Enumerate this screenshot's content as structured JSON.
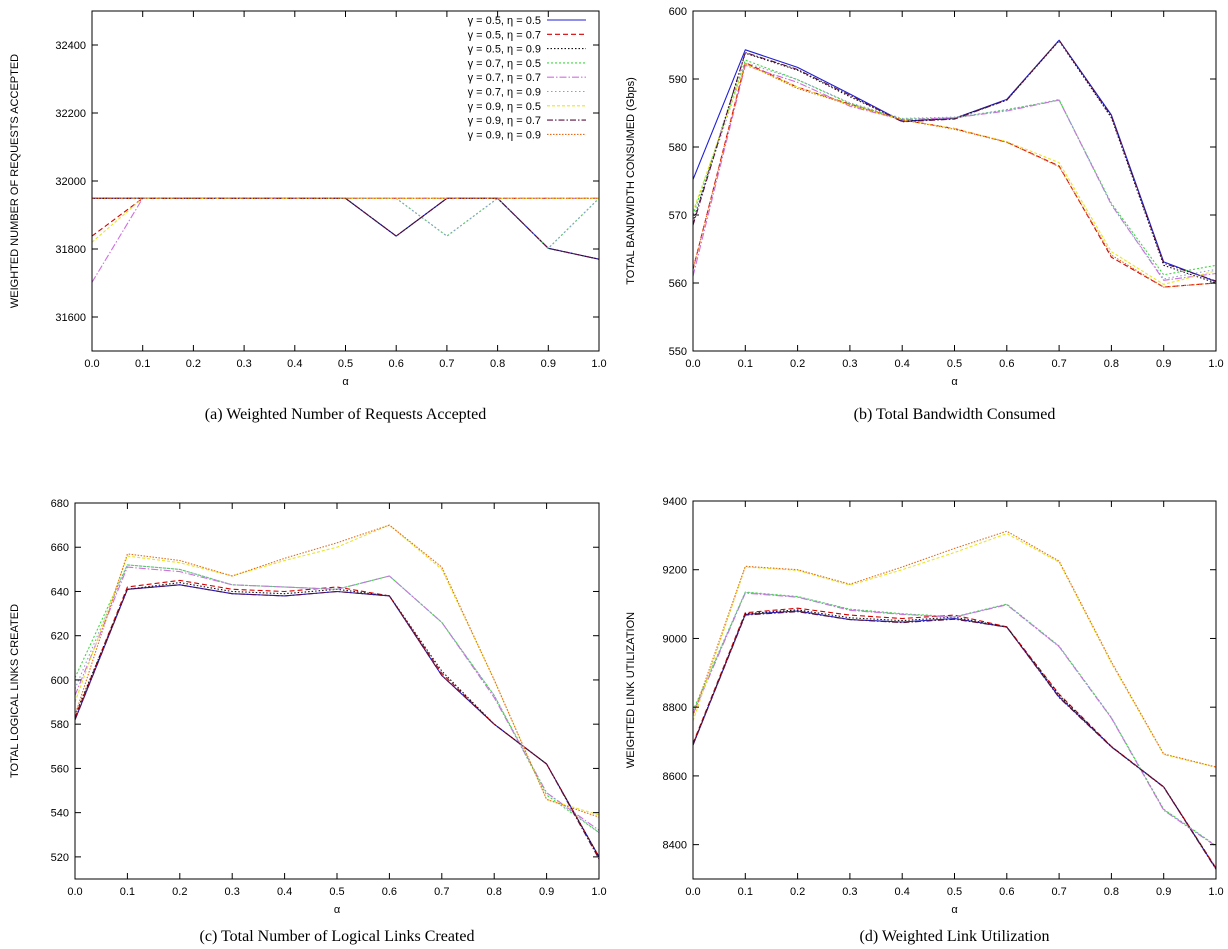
{
  "chart_data": [
    {
      "type": "line",
      "caption": "(a) Weighted Number of Requests Accepted",
      "xlabel": "α",
      "ylabel": "WEIGHTED NUMBER OF REQUESTS ACCEPTED",
      "xlim": [
        0,
        1
      ],
      "ylim": [
        31500,
        32500
      ],
      "xticks": [
        0,
        0.1,
        0.2,
        0.3,
        0.4,
        0.5,
        0.6,
        0.7,
        0.8,
        0.9,
        1.0
      ],
      "xtick_labels": [
        "0.0",
        "0.1",
        "0.2",
        "0.3",
        "0.4",
        "0.5",
        "0.6",
        "0.7",
        "0.8",
        "0.9",
        "1.0"
      ],
      "yticks": [
        31600,
        31800,
        32000,
        32200,
        32400
      ],
      "ytick_labels": [
        "31600",
        "31800",
        "32000",
        "32200",
        "32400"
      ],
      "legend": "top-right",
      "x": [
        0,
        0.1,
        0.2,
        0.3,
        0.4,
        0.5,
        0.6,
        0.7,
        0.8,
        0.9,
        1.0
      ],
      "series": [
        {
          "name": "γ = 0.5, η = 0.5",
          "values": [
            31949,
            31949,
            31949,
            31949,
            31949,
            31949,
            31838,
            31949,
            31949,
            31802,
            31770
          ]
        },
        {
          "name": "γ = 0.5, η = 0.7",
          "values": [
            31838,
            31949,
            31949,
            31949,
            31949,
            31949,
            31949,
            31949,
            31949,
            31949,
            31949
          ]
        },
        {
          "name": "γ = 0.5, η = 0.9",
          "values": [
            31949,
            31949,
            31949,
            31949,
            31949,
            31949,
            31838,
            31949,
            31949,
            31802,
            31770
          ]
        },
        {
          "name": "γ = 0.7, η = 0.5",
          "values": [
            31949,
            31949,
            31949,
            31949,
            31949,
            31949,
            31949,
            31838,
            31949,
            31802,
            31949
          ]
        },
        {
          "name": "γ = 0.7, η = 0.7",
          "values": [
            31702,
            31949,
            31949,
            31949,
            31949,
            31949,
            31949,
            31949,
            31949,
            31949,
            31949
          ]
        },
        {
          "name": "γ = 0.7, η = 0.9",
          "values": [
            31949,
            31949,
            31949,
            31949,
            31949,
            31949,
            31949,
            31838,
            31949,
            31802,
            31949
          ]
        },
        {
          "name": "γ = 0.9, η = 0.5",
          "values": [
            31820,
            31949,
            31949,
            31949,
            31949,
            31949,
            31949,
            31949,
            31949,
            31949,
            31949
          ]
        },
        {
          "name": "γ = 0.9, η = 0.7",
          "values": [
            31949,
            31949,
            31949,
            31949,
            31949,
            31949,
            31838,
            31949,
            31949,
            31802,
            31770
          ]
        },
        {
          "name": "γ = 0.9, η = 0.9",
          "values": [
            31949,
            31949,
            31949,
            31949,
            31949,
            31949,
            31949,
            31949,
            31949,
            31949,
            31949
          ]
        }
      ]
    },
    {
      "type": "line",
      "caption": "(b) Total Bandwidth Consumed",
      "xlabel": "α",
      "ylabel": "TOTAL BANDWIDTH CONSUMED (Gbps)",
      "xlim": [
        0,
        1
      ],
      "ylim": [
        550,
        600
      ],
      "xticks": [
        0,
        0.1,
        0.2,
        0.3,
        0.4,
        0.5,
        0.6,
        0.7,
        0.8,
        0.9,
        1.0
      ],
      "xtick_labels": [
        "0.0",
        "0.1",
        "0.2",
        "0.3",
        "0.4",
        "0.5",
        "0.6",
        "0.7",
        "0.8",
        "0.9",
        "1.0"
      ],
      "yticks": [
        550,
        560,
        570,
        580,
        590,
        600
      ],
      "ytick_labels": [
        "550",
        "560",
        "570",
        "580",
        "590",
        "600"
      ],
      "x": [
        0,
        0.1,
        0.2,
        0.3,
        0.4,
        0.5,
        0.6,
        0.7,
        0.8,
        0.9,
        1.0
      ],
      "series": [
        {
          "name": "γ = 0.5, η = 0.5",
          "values": [
            575.2,
            594.3,
            591.7,
            587.8,
            583.8,
            584.2,
            587.0,
            595.7,
            584.7,
            563.1,
            560.2
          ]
        },
        {
          "name": "γ = 0.5, η = 0.7",
          "values": [
            562.0,
            592.4,
            588.8,
            586.3,
            584.0,
            582.7,
            580.7,
            577.2,
            563.8,
            559.4,
            560.0
          ]
        },
        {
          "name": "γ = 0.5, η = 0.9",
          "values": [
            569.0,
            593.8,
            591.3,
            587.4,
            583.8,
            584.2,
            586.9,
            595.6,
            584.3,
            562.6,
            560.0
          ]
        },
        {
          "name": "γ = 0.7, η = 0.5",
          "values": [
            570.0,
            592.8,
            589.9,
            586.4,
            584.1,
            584.3,
            585.5,
            586.9,
            571.7,
            561.2,
            562.6
          ]
        },
        {
          "name": "γ = 0.7, η = 0.7",
          "values": [
            561.0,
            592.0,
            589.5,
            586.0,
            584.0,
            584.3,
            585.3,
            586.9,
            571.5,
            560.4,
            561.4
          ]
        },
        {
          "name": "γ = 0.7, η = 0.9",
          "values": [
            569.3,
            592.4,
            589.9,
            586.5,
            584.2,
            584.4,
            585.4,
            587.0,
            571.5,
            560.6,
            562.0
          ]
        },
        {
          "name": "γ = 0.9, η = 0.5",
          "values": [
            570.5,
            592.2,
            588.8,
            586.2,
            584.0,
            582.7,
            580.8,
            577.7,
            564.6,
            559.8,
            561.8
          ]
        },
        {
          "name": "γ = 0.9, η = 0.7",
          "values": [
            568.5,
            593.9,
            591.4,
            587.6,
            583.7,
            584.1,
            586.9,
            595.7,
            584.5,
            562.9,
            560.3
          ]
        },
        {
          "name": "γ = 0.9, η = 0.9",
          "values": [
            562.0,
            592.3,
            588.6,
            586.2,
            584.0,
            582.6,
            580.7,
            577.1,
            564.1,
            559.4,
            560.0
          ]
        }
      ]
    },
    {
      "type": "line",
      "caption": "(c) Total Number of Logical Links Created",
      "xlabel": "α",
      "ylabel": "TOTAL LOGICAL LINKS CREATED",
      "xlim": [
        0,
        1
      ],
      "ylim": [
        510,
        680
      ],
      "xticks": [
        0,
        0.1,
        0.2,
        0.3,
        0.4,
        0.5,
        0.6,
        0.7,
        0.8,
        0.9,
        1.0
      ],
      "xtick_labels": [
        "0.0",
        "0.1",
        "0.2",
        "0.3",
        "0.4",
        "0.5",
        "0.6",
        "0.7",
        "0.8",
        "0.9",
        "1.0"
      ],
      "yticks": [
        520,
        540,
        560,
        580,
        600,
        620,
        640,
        660,
        680
      ],
      "ytick_labels": [
        "520",
        "540",
        "560",
        "580",
        "600",
        "620",
        "640",
        "660",
        "680"
      ],
      "x": [
        0,
        0.1,
        0.2,
        0.3,
        0.4,
        0.5,
        0.6,
        0.7,
        0.8,
        0.9,
        1.0
      ],
      "series": [
        {
          "name": "γ = 0.5, η = 0.5",
          "values": [
            582,
            641,
            643,
            639,
            638,
            640,
            638,
            602,
            580,
            562,
            520
          ]
        },
        {
          "name": "γ = 0.5, η = 0.7",
          "values": [
            583,
            642,
            645,
            641,
            640,
            642,
            638,
            603,
            580,
            562,
            520
          ]
        },
        {
          "name": "γ = 0.5, η = 0.9",
          "values": [
            584,
            641,
            644,
            640,
            639,
            641,
            638,
            604,
            580,
            562,
            520
          ]
        },
        {
          "name": "γ = 0.7, η = 0.5",
          "values": [
            601,
            652,
            650,
            643,
            642,
            641,
            647,
            626,
            593,
            548,
            531
          ]
        },
        {
          "name": "γ = 0.7, η = 0.7",
          "values": [
            593,
            651,
            649,
            643,
            642,
            641,
            647,
            626,
            592,
            549,
            532
          ]
        },
        {
          "name": "γ = 0.7, η = 0.9",
          "values": [
            596,
            652,
            650,
            643,
            642,
            641,
            647,
            626,
            593,
            549,
            531
          ]
        },
        {
          "name": "γ = 0.9, η = 0.5",
          "values": [
            590,
            656,
            653,
            647,
            654,
            660,
            670,
            650,
            600,
            546,
            539
          ]
        },
        {
          "name": "γ = 0.9, η = 0.7",
          "values": [
            582,
            641,
            643,
            639,
            638,
            640,
            638,
            602,
            580,
            562,
            519
          ]
        },
        {
          "name": "γ = 0.9, η = 0.9",
          "values": [
            584,
            657,
            654,
            647,
            655,
            662,
            670,
            651,
            600,
            546,
            538
          ]
        }
      ]
    },
    {
      "type": "line",
      "caption": "(d) Weighted Link Utilization",
      "xlabel": "α",
      "ylabel": "WEIGHTED LINK UTILIZATION",
      "xlim": [
        0,
        1
      ],
      "ylim": [
        8300,
        9400
      ],
      "xticks": [
        0,
        0.1,
        0.2,
        0.3,
        0.4,
        0.5,
        0.6,
        0.7,
        0.8,
        0.9,
        1.0
      ],
      "xtick_labels": [
        "0.0",
        "0.1",
        "0.2",
        "0.3",
        "0.4",
        "0.5",
        "0.6",
        "0.7",
        "0.8",
        "0.9",
        "1.0"
      ],
      "yticks": [
        8400,
        8600,
        8800,
        9000,
        9200,
        9400
      ],
      "ytick_labels": [
        "8400",
        "8600",
        "8800",
        "9000",
        "9200",
        "9400"
      ],
      "x": [
        0,
        0.1,
        0.2,
        0.3,
        0.4,
        0.5,
        0.6,
        0.7,
        0.8,
        0.9,
        1.0
      ],
      "series": [
        {
          "name": "γ = 0.5, η = 0.5",
          "values": [
            8690,
            9070,
            9080,
            9055,
            9048,
            9058,
            9033,
            8830,
            8685,
            8568,
            8330
          ]
        },
        {
          "name": "γ = 0.5, η = 0.7",
          "values": [
            8695,
            9075,
            9088,
            9068,
            9058,
            9068,
            9034,
            8838,
            8686,
            8568,
            8332
          ]
        },
        {
          "name": "γ = 0.5, η = 0.9",
          "values": [
            8692,
            9072,
            9083,
            9060,
            9052,
            9062,
            9033,
            8835,
            8685,
            8568,
            8330
          ]
        },
        {
          "name": "γ = 0.7, η = 0.5",
          "values": [
            8790,
            9135,
            9122,
            9085,
            9072,
            9063,
            9100,
            8978,
            8770,
            8503,
            8397
          ]
        },
        {
          "name": "γ = 0.7, η = 0.7",
          "values": [
            8780,
            9132,
            9120,
            9082,
            9070,
            9062,
            9098,
            8976,
            8768,
            8500,
            8395
          ]
        },
        {
          "name": "γ = 0.7, η = 0.9",
          "values": [
            8785,
            9134,
            9121,
            9084,
            9071,
            9062,
            9099,
            8977,
            8769,
            8502,
            8396
          ]
        },
        {
          "name": "γ = 0.9, η = 0.5",
          "values": [
            8760,
            9208,
            9198,
            9155,
            9200,
            9250,
            9305,
            9222,
            8928,
            8662,
            8625
          ]
        },
        {
          "name": "γ = 0.9, η = 0.7",
          "values": [
            8690,
            9068,
            9078,
            9055,
            9046,
            9056,
            9033,
            8828,
            8684,
            8567,
            8328
          ]
        },
        {
          "name": "γ = 0.9, η = 0.9",
          "values": [
            8775,
            9210,
            9200,
            9158,
            9208,
            9262,
            9312,
            9225,
            8932,
            8664,
            8626
          ]
        }
      ]
    }
  ],
  "series_colors": [
    "#1f1fd6",
    "#d40000",
    "#111111",
    "#3cd83c",
    "#d070e0",
    "#8aa0c8",
    "#e6e62a",
    "#5a1040",
    "#e86a1a"
  ],
  "series_dashes": [
    "",
    "5,3",
    "1.5,2",
    "2,2",
    "7,2,1.5,2",
    "1.5,2.5",
    "3,2",
    "6,2,1.5,2",
    "1.5,1.5"
  ]
}
